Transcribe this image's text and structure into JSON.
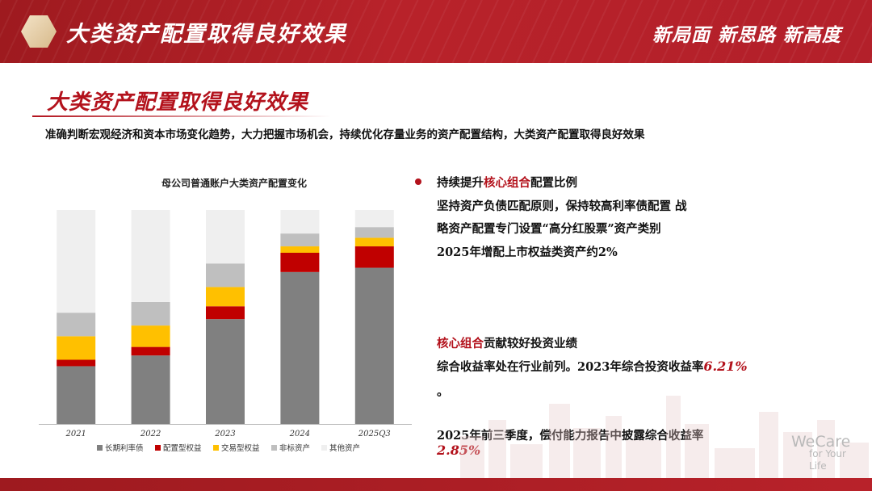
{
  "banner": {
    "title": "大类资产配置取得良好效果",
    "slogan": "新局面  新思路  新高度"
  },
  "section": {
    "title": "大类资产配置取得良好效果",
    "subtitle": "准确判断宏观经济和资本市场变化趋势，大力把握市场机会，持续优化存量业务的资产配置结构，大类资产配置取得良好效果"
  },
  "chart_data": {
    "type": "bar",
    "stacked": true,
    "title": "母公司普通账户大类资产配置变化",
    "categories": [
      "2021",
      "2022",
      "2023",
      "2024",
      "2025Q3"
    ],
    "ylim": [
      0,
      100
    ],
    "grid": false,
    "legend_position": "bottom",
    "series": [
      {
        "name": "长期利率债",
        "color": "#808080",
        "values": [
          27,
          32,
          49,
          71,
          73
        ]
      },
      {
        "name": "配置型权益",
        "color": "#c00000",
        "values": [
          3,
          4,
          6,
          9,
          10
        ]
      },
      {
        "name": "交易型权益",
        "color": "#ffc000",
        "values": [
          11,
          10,
          9,
          3,
          4
        ]
      },
      {
        "name": "非标资产",
        "color": "#bfbfbf",
        "values": [
          11,
          11,
          11,
          6,
          5
        ]
      },
      {
        "name": "其他资产",
        "color": "#efefef",
        "values": [
          48,
          43,
          25,
          11,
          8
        ]
      }
    ]
  },
  "right": {
    "point1_pre": "持续提升",
    "point1_highlight": "核心组合",
    "point1_post": "配置比例",
    "line1": "坚持资产负债匹配原则，保持较高利率债配置 战",
    "line2": "略资产配置专门设置“高分红股票”资产类别",
    "line3": "2025年增配上市权益类资产约2%",
    "point2_highlight": "核心组合",
    "point2_post": "贡献较好投资业绩",
    "line4_pre": "综合收益率处在行业前列。2023年综合投资收益率",
    "line4_value": "6.21%",
    "line4_end": "。",
    "line5": "2025年前三季度，偿付能力报告中披露综合收益率",
    "line5_value": "2.85%"
  },
  "watermark": {
    "line1": "WeCare",
    "line2": "for Your",
    "line3": "Life"
  },
  "colors": {
    "brand_red": "#b3121c",
    "banner_red": "#b8222a"
  }
}
